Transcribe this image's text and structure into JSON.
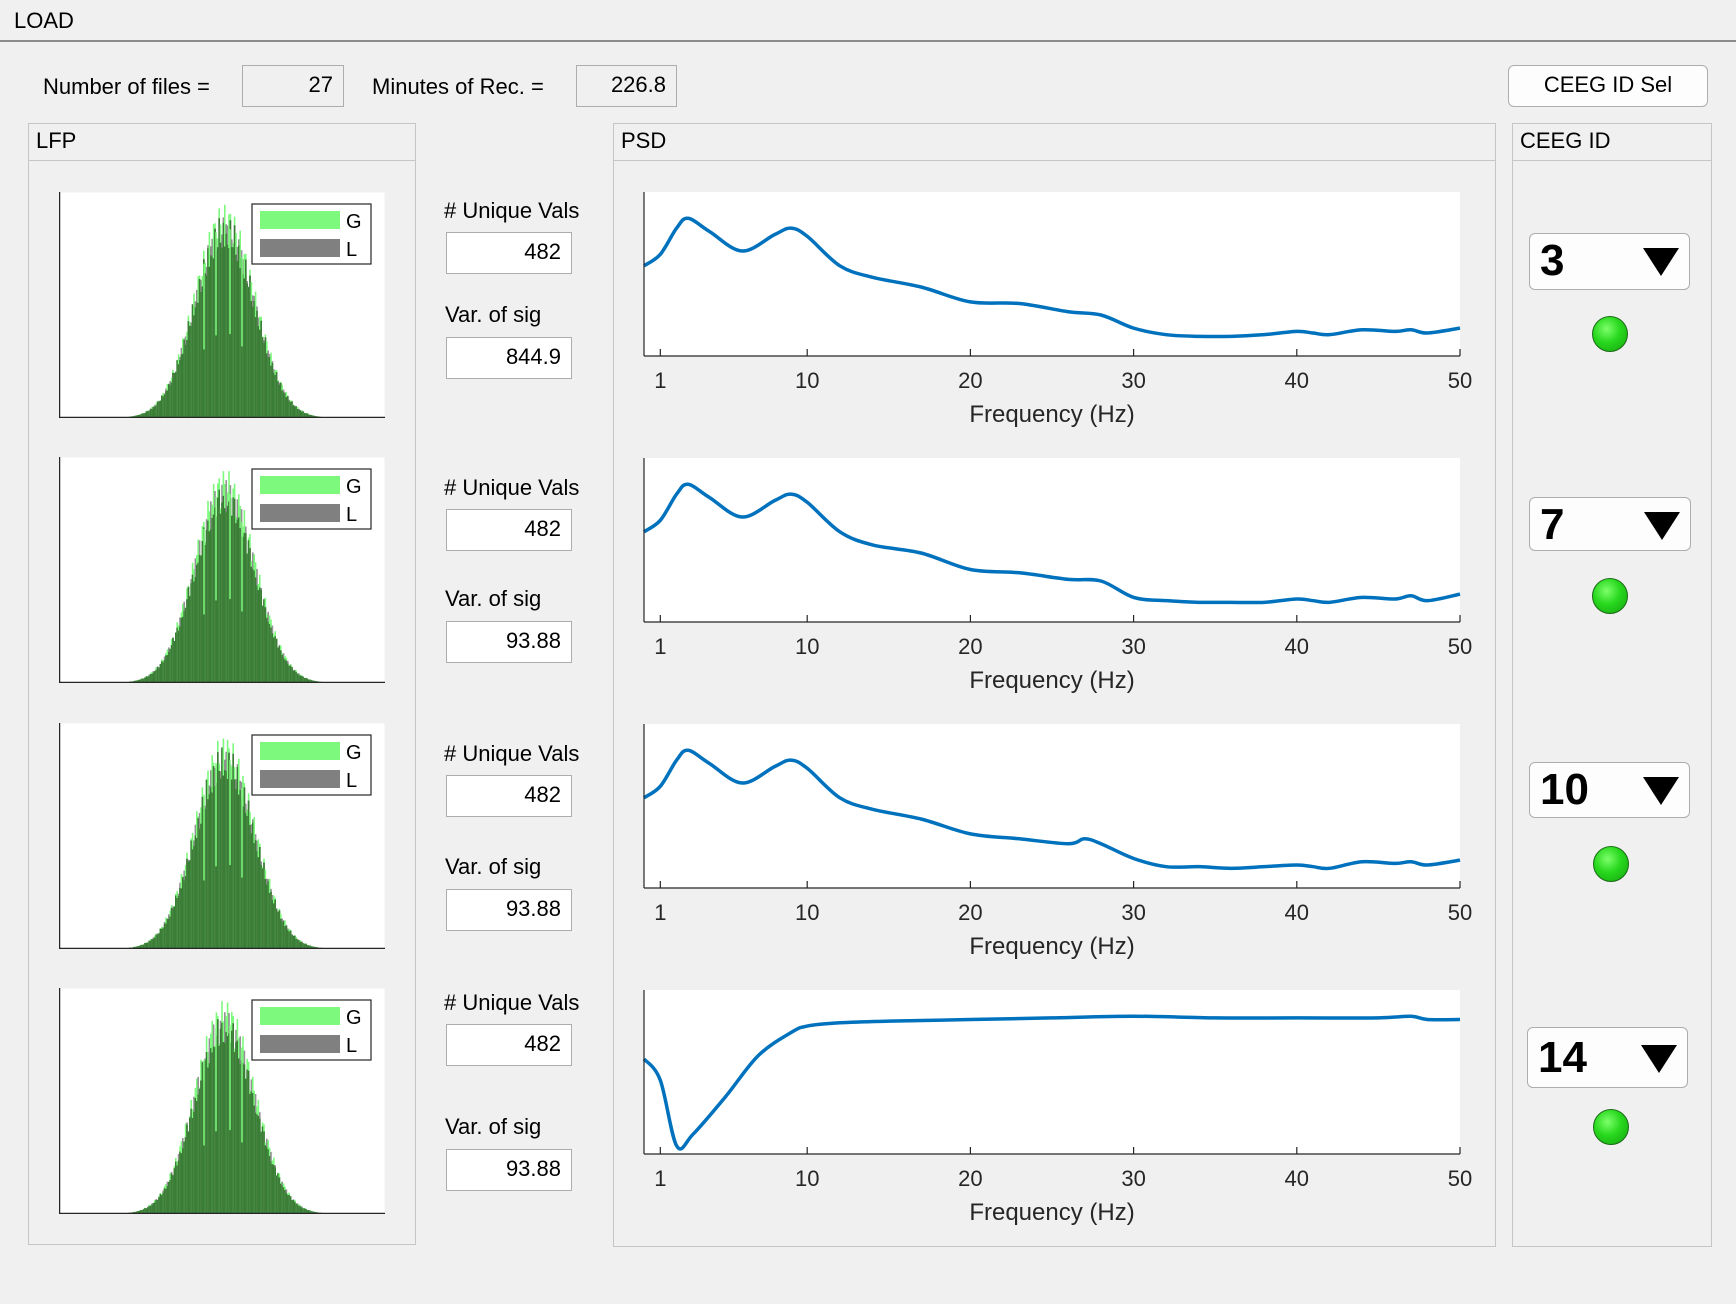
{
  "menu": {
    "load_label": "LOAD"
  },
  "header": {
    "num_files_label": "Number of files =",
    "num_files_value": "27",
    "minutes_label": "Minutes of Rec. =",
    "minutes_value": "226.8",
    "ceeg_sel_button": "CEEG ID Sel"
  },
  "panels": {
    "lfp_title": "LFP",
    "psd_title": "PSD",
    "ceeg_title": "CEEG ID"
  },
  "colors": {
    "green": "#7dfa7d",
    "gray": "#808080",
    "dark_green": "#3a7d35",
    "psd_line": "#0072bd",
    "lamp": "#28d81e"
  },
  "legend": {
    "g": "G",
    "l": "L"
  },
  "stats": [
    {
      "unique_label": "# Unique Vals",
      "unique_value": "482",
      "var_label": "Var. of sig",
      "var_value": "844.9"
    },
    {
      "unique_label": "# Unique Vals",
      "unique_value": "482",
      "var_label": "Var. of sig",
      "var_value": "93.88"
    },
    {
      "unique_label": "# Unique Vals",
      "unique_value": "482",
      "var_label": "Var. of sig",
      "var_value": "93.88"
    },
    {
      "unique_label": "# Unique Vals",
      "unique_value": "482",
      "var_label": "Var. of sig",
      "var_value": "93.88"
    }
  ],
  "ceeg_ids": [
    {
      "value": "3",
      "status": "ok"
    },
    {
      "value": "7",
      "status": "ok"
    },
    {
      "value": "10",
      "status": "ok"
    },
    {
      "value": "14",
      "status": "ok"
    }
  ],
  "chart_data": [
    {
      "type": "line",
      "title": "",
      "xlabel": "Frequency (Hz)",
      "ylabel": "",
      "xlim": [
        0,
        50
      ],
      "xticks": [
        "1",
        "10",
        "20",
        "30",
        "40",
        "50"
      ],
      "grid": false,
      "series": [
        {
          "x": [
            0,
            1,
            2,
            2.7,
            4,
            6,
            8,
            9,
            10,
            12,
            14,
            17,
            20,
            23,
            26,
            28,
            30,
            32,
            34,
            36,
            38,
            40,
            41,
            42,
            44,
            46,
            47,
            48,
            50
          ],
          "y": [
            0.55,
            0.62,
            0.78,
            0.84,
            0.76,
            0.64,
            0.74,
            0.78,
            0.73,
            0.55,
            0.48,
            0.42,
            0.33,
            0.32,
            0.27,
            0.25,
            0.17,
            0.13,
            0.12,
            0.12,
            0.13,
            0.15,
            0.14,
            0.13,
            0.16,
            0.15,
            0.16,
            0.14,
            0.17
          ]
        }
      ]
    },
    {
      "type": "line",
      "title": "",
      "xlabel": "Frequency (Hz)",
      "ylabel": "",
      "xlim": [
        0,
        50
      ],
      "xticks": [
        "1",
        "10",
        "20",
        "30",
        "40",
        "50"
      ],
      "grid": false,
      "series": [
        {
          "x": [
            0,
            1,
            2,
            2.7,
            4,
            6,
            8,
            9,
            10,
            12,
            14,
            17,
            20,
            23,
            26,
            28,
            30,
            32,
            34,
            36,
            38,
            40,
            41,
            42,
            44,
            46,
            47,
            48,
            50
          ],
          "y": [
            0.55,
            0.62,
            0.78,
            0.84,
            0.76,
            0.64,
            0.74,
            0.78,
            0.73,
            0.55,
            0.47,
            0.42,
            0.32,
            0.3,
            0.26,
            0.25,
            0.15,
            0.13,
            0.12,
            0.12,
            0.12,
            0.14,
            0.13,
            0.12,
            0.15,
            0.14,
            0.16,
            0.13,
            0.17
          ]
        }
      ]
    },
    {
      "type": "line",
      "title": "",
      "xlabel": "Frequency (Hz)",
      "ylabel": "",
      "xlim": [
        0,
        50
      ],
      "xticks": [
        "1",
        "10",
        "20",
        "30",
        "40",
        "50"
      ],
      "grid": false,
      "series": [
        {
          "x": [
            0,
            1,
            2,
            2.7,
            4,
            6,
            8,
            9,
            10,
            12,
            14,
            17,
            20,
            23,
            26,
            27,
            28,
            30,
            32,
            34,
            36,
            38,
            40,
            41,
            42,
            44,
            46,
            47,
            48,
            50
          ],
          "y": [
            0.55,
            0.62,
            0.78,
            0.84,
            0.76,
            0.64,
            0.74,
            0.78,
            0.73,
            0.55,
            0.48,
            0.42,
            0.33,
            0.3,
            0.27,
            0.3,
            0.27,
            0.18,
            0.13,
            0.13,
            0.12,
            0.13,
            0.14,
            0.13,
            0.12,
            0.16,
            0.15,
            0.16,
            0.14,
            0.17
          ]
        }
      ]
    },
    {
      "type": "line",
      "title": "",
      "xlabel": "Frequency (Hz)",
      "ylabel": "",
      "xlim": [
        0,
        50
      ],
      "xticks": [
        "1",
        "10",
        "20",
        "30",
        "40",
        "50"
      ],
      "grid": false,
      "series": [
        {
          "x": [
            0,
            1,
            2,
            3,
            5,
            7,
            9,
            10,
            12,
            15,
            20,
            25,
            30,
            35,
            40,
            45,
            47,
            48,
            50
          ],
          "y": [
            0.58,
            0.45,
            0.05,
            0.12,
            0.35,
            0.6,
            0.74,
            0.78,
            0.8,
            0.81,
            0.82,
            0.83,
            0.84,
            0.83,
            0.83,
            0.83,
            0.84,
            0.82,
            0.82
          ]
        }
      ]
    }
  ]
}
